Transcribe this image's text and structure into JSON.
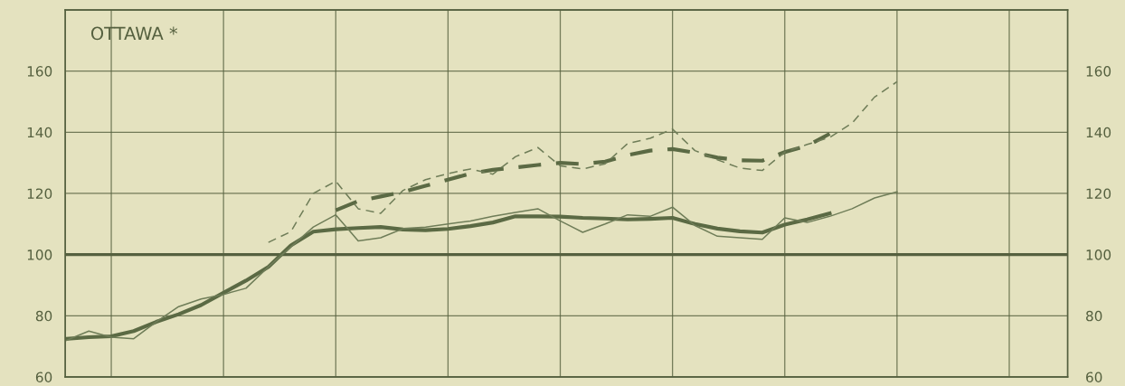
{
  "chart_data": {
    "type": "line",
    "annotations": [
      "OTTAWA *"
    ],
    "categories": [
      null,
      null,
      null,
      null,
      null,
      null,
      null,
      null,
      null,
      null,
      null,
      null,
      null,
      null,
      null,
      null,
      null,
      null,
      null,
      null,
      null,
      null,
      null,
      null,
      null,
      null,
      null,
      null,
      null,
      null,
      null,
      null,
      null,
      null,
      null,
      null,
      null,
      null,
      null,
      null,
      null,
      null,
      null,
      null,
      null
    ],
    "ylim": [
      60,
      180
    ],
    "yticks": [
      60,
      80,
      100,
      120,
      140,
      160
    ],
    "y2lim": [
      60,
      180
    ],
    "y2ticks": [
      60,
      80,
      100,
      120,
      140,
      160
    ],
    "tick_labels": "y",
    "grid": true,
    "legend": false,
    "marker": "none",
    "ref_lines": [
      {
        "axis": "y",
        "value": 100,
        "label": null,
        "color": "#55603f"
      }
    ],
    "series": [
      {
        "color": "#5b6a44",
        "line_style": "solid",
        "values": [
          72.5,
          73,
          73.3,
          75,
          78,
          80.5,
          83.5,
          87.5,
          91.5,
          96,
          103,
          107.5,
          108.3,
          108.7,
          109,
          108.2,
          108,
          108.4,
          109.3,
          110.5,
          112.5,
          112.5,
          112.4,
          112,
          111.8,
          111.5,
          111.7,
          112,
          110,
          108.5,
          107.6,
          107.2,
          109.8,
          111.5,
          113.5,
          null,
          null,
          null,
          null,
          null,
          null,
          null,
          null,
          null,
          null
        ]
      },
      {
        "color": "#6f7d58",
        "line_style": "solid",
        "values": [
          72,
          75,
          73,
          72.5,
          78,
          83,
          85.5,
          87,
          89,
          96,
          102.5,
          109,
          113,
          104.5,
          105.5,
          108.5,
          109,
          110,
          111,
          112.5,
          113.8,
          115,
          111,
          107.3,
          110,
          113,
          112.5,
          115.5,
          109.5,
          106,
          105.5,
          105,
          112,
          110.5,
          112.5,
          115,
          118.5,
          120.5,
          null,
          null,
          null,
          null,
          null,
          null,
          null
        ]
      },
      {
        "color": "#5b6a44",
        "line_style": "dashed",
        "values": [
          null,
          null,
          null,
          null,
          null,
          null,
          null,
          null,
          null,
          null,
          null,
          null,
          114.5,
          117.5,
          119,
          120.5,
          122.5,
          124.5,
          126.5,
          127.7,
          128.5,
          129.3,
          130,
          129.6,
          130.4,
          132.5,
          134,
          134.5,
          133.3,
          131.7,
          130.8,
          130.7,
          133.5,
          135.6,
          139.5,
          null,
          null,
          null,
          null,
          null,
          null,
          null,
          null,
          null,
          null
        ]
      },
      {
        "color": "#6f7d58",
        "line_style": "dashed",
        "values": [
          null,
          null,
          null,
          null,
          null,
          null,
          null,
          null,
          null,
          104,
          107.5,
          120,
          124,
          115,
          113.5,
          121,
          124.5,
          126.5,
          128,
          126.3,
          132,
          135,
          129,
          128,
          129.7,
          136.3,
          138,
          141,
          134,
          131,
          128.3,
          127.5,
          133.5,
          136,
          138.3,
          143,
          151.5,
          156.5,
          null,
          null,
          null,
          null,
          null,
          null,
          null
        ]
      }
    ]
  }
}
